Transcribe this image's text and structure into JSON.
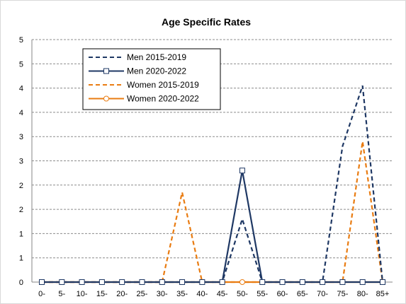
{
  "chart_data": {
    "type": "line",
    "title": "Age Specific Rates",
    "xlabel": "",
    "ylabel": "",
    "categories": [
      "0-",
      "5-",
      "10-",
      "15-",
      "20-",
      "25-",
      "30-",
      "35-",
      "40-",
      "45-",
      "50-",
      "55-",
      "60-",
      "65-",
      "70-",
      "75-",
      "80-",
      "85+"
    ],
    "y_tick_labels": [
      "0",
      "1",
      "1",
      "2",
      "2",
      "3",
      "3",
      "4",
      "4",
      "5"
    ],
    "y_tick_values": [
      0,
      0.5,
      1,
      1.5,
      2,
      2.5,
      3,
      3.5,
      4,
      4.5
    ],
    "ylim": [
      0,
      4.5
    ],
    "grid": true,
    "legend": "top-left",
    "series": [
      {
        "name": "Men 2015-2019",
        "color": "#1f3864",
        "dash": "dashed",
        "marker": "none",
        "values": [
          0,
          0,
          0,
          0,
          0,
          0,
          0,
          0,
          0,
          0,
          1.3,
          0,
          0,
          0,
          0,
          2.8,
          4.05,
          0
        ]
      },
      {
        "name": "Men 2020-2022",
        "color": "#1f3864",
        "dash": "solid",
        "marker": "square",
        "values": [
          0,
          0,
          0,
          0,
          0,
          0,
          0,
          0,
          0,
          0,
          2.3,
          0,
          0,
          0,
          0,
          0,
          0,
          0
        ]
      },
      {
        "name": "Women 2015-2019",
        "color": "#e97c12",
        "dash": "dashed",
        "marker": "none",
        "values": [
          0,
          0,
          0,
          0,
          0,
          0,
          0,
          1.85,
          0,
          0,
          0,
          0,
          0,
          0,
          0,
          0,
          2.9,
          0
        ]
      },
      {
        "name": "Women 2020-2022",
        "color": "#e97c12",
        "dash": "solid",
        "marker": "circle",
        "values": [
          0,
          0,
          0,
          0,
          0,
          0,
          0,
          0,
          0,
          0,
          0,
          0,
          0,
          0,
          0,
          0,
          0,
          0
        ]
      }
    ]
  }
}
